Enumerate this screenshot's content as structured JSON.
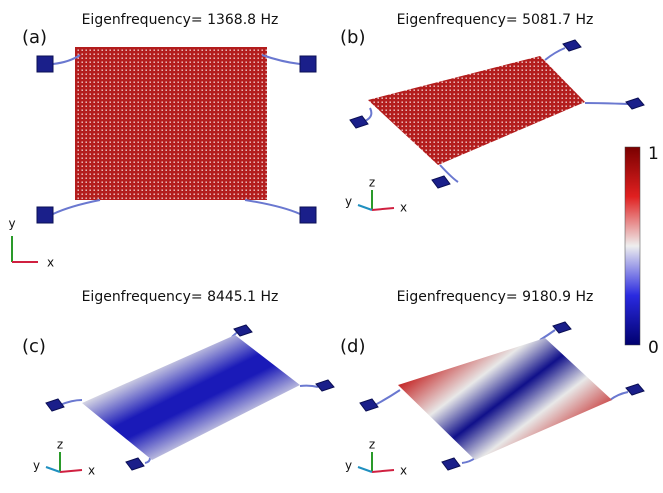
{
  "panels": [
    {
      "label": "(a)",
      "title": "Eigenfrequency= 1368.8 Hz"
    },
    {
      "label": "(b)",
      "title": "Eigenfrequency= 5081.7 Hz"
    },
    {
      "label": "(c)",
      "title": "Eigenfrequency= 8445.1 Hz"
    },
    {
      "label": "(d)",
      "title": "Eigenfrequency= 9180.9 Hz"
    }
  ],
  "colorbar": {
    "max_label": "1",
    "min_label": "0"
  },
  "axes": {
    "x": "x",
    "y": "y",
    "z": "z"
  }
}
